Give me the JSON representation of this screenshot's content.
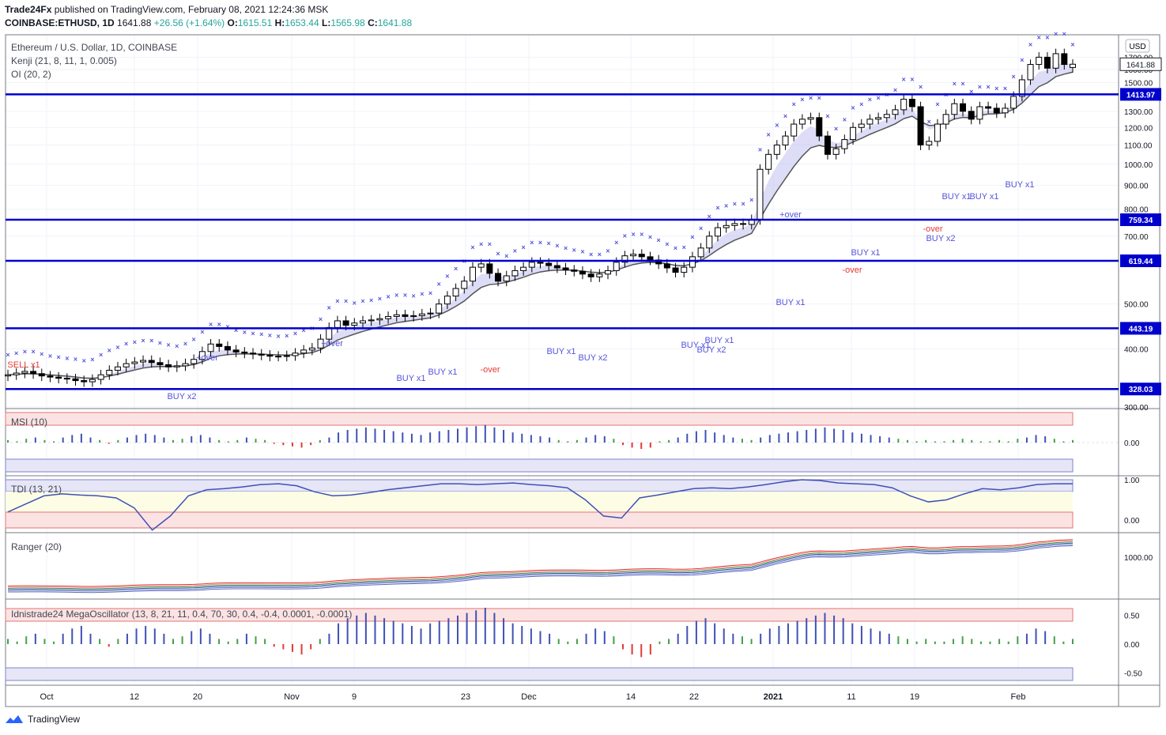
{
  "header": {
    "publisher": "Trade24Fx",
    "published_text": "published on TradingView.com, February 08, 2021 12:24:36 MSK",
    "symbol": "COINBASE:ETHUSD, 1D",
    "last": "1641.88",
    "change": "+26.56 (+1.64%)",
    "o_label": "O:",
    "o": "1615.51",
    "h_label": "H:",
    "h": "1653.44",
    "l_label": "L:",
    "l": "1565.98",
    "c_label": "C:",
    "c": "1641.88"
  },
  "legend": {
    "title": "Ethereum / U.S. Dollar, 1D, COINBASE",
    "kenji": "Kenji (21, 8, 11, 1, 0.005)",
    "oi": "OI (20, 2)"
  },
  "currency": "USD",
  "colors": {
    "line_blue": "#0000cc",
    "candle_up": "#ffffff",
    "candle_down": "#000000",
    "band": "#b3b3ee",
    "marker": "#5555dd"
  },
  "chart_data": [
    {
      "type": "candlestick",
      "title": "Ethereum / U.S. Dollar, 1D, COINBASE",
      "y_scale": "log",
      "ylim": [
        300,
        1900
      ],
      "y_ticks": [
        "1700.00",
        "1600.00",
        "1500.00",
        "1300.00",
        "1200.00",
        "1100.00",
        "1000.00",
        "900.00",
        "800.00",
        "700.00",
        "500.00",
        "400.00",
        "300.00"
      ],
      "y_tick_values": [
        1700,
        1600,
        1500,
        1300,
        1200,
        1100,
        1000,
        900,
        800,
        700,
        500,
        400,
        300
      ],
      "x_ticks": [
        "Oct",
        "12",
        "20",
        "Nov",
        "9",
        "23",
        "Dec",
        "14",
        "22",
        "2021",
        "11",
        "19",
        "Feb"
      ],
      "horizontal_levels": [
        {
          "label": "1413.97",
          "value": 1413.97
        },
        {
          "label": "759.34",
          "value": 759.34
        },
        {
          "label": "619.44",
          "value": 619.44
        },
        {
          "label": "443.19",
          "value": 443.19
        },
        {
          "label": "328.03",
          "value": 328.03
        }
      ],
      "price_label": "1641.88",
      "annotations": [
        "BUY x1",
        "BUY x2",
        "+over",
        "-over",
        "SELL x1"
      ],
      "close": [
        352,
        355,
        358,
        354,
        350,
        348,
        346,
        345,
        342,
        340,
        344,
        352,
        360,
        366,
        372,
        375,
        378,
        374,
        370,
        366,
        368,
        372,
        380,
        395,
        410,
        405,
        398,
        394,
        392,
        390,
        388,
        386,
        386,
        387,
        392,
        398,
        402,
        420,
        445,
        460,
        450,
        455,
        460,
        462,
        465,
        470,
        474,
        470,
        472,
        476,
        478,
        500,
        520,
        540,
        560,
        600,
        610,
        582,
        560,
        575,
        590,
        600,
        615,
        612,
        605,
        598,
        592,
        588,
        580,
        572,
        580,
        590,
        615,
        635,
        640,
        632,
        622,
        610,
        598,
        585,
        600,
        632,
        660,
        700,
        730,
        738,
        745,
        742,
        760,
        975,
        1050,
        1100,
        1150,
        1220,
        1250,
        1260,
        1150,
        1050,
        1080,
        1130,
        1200,
        1220,
        1250,
        1260,
        1280,
        1310,
        1380,
        1330,
        1100,
        1120,
        1220,
        1280,
        1350,
        1300,
        1250,
        1330,
        1320,
        1290,
        1320,
        1400,
        1520,
        1640,
        1700,
        1610,
        1730,
        1640,
        1641.88
      ],
      "open": [
        350,
        352,
        355,
        358,
        354,
        350,
        348,
        346,
        345,
        342,
        340,
        344,
        352,
        360,
        366,
        372,
        375,
        378,
        374,
        370,
        366,
        368,
        372,
        380,
        395,
        410,
        405,
        398,
        394,
        392,
        390,
        388,
        386,
        386,
        387,
        392,
        398,
        402,
        420,
        445,
        460,
        450,
        455,
        460,
        462,
        465,
        470,
        474,
        470,
        472,
        476,
        478,
        500,
        520,
        540,
        560,
        600,
        610,
        582,
        560,
        575,
        590,
        600,
        615,
        612,
        605,
        598,
        592,
        588,
        580,
        572,
        580,
        590,
        615,
        635,
        640,
        632,
        622,
        610,
        598,
        585,
        600,
        632,
        660,
        700,
        730,
        738,
        745,
        742,
        760,
        975,
        1050,
        1100,
        1150,
        1220,
        1250,
        1260,
        1150,
        1050,
        1080,
        1130,
        1200,
        1220,
        1250,
        1260,
        1280,
        1310,
        1380,
        1330,
        1100,
        1120,
        1220,
        1280,
        1350,
        1300,
        1250,
        1330,
        1320,
        1290,
        1320,
        1400,
        1520,
        1640,
        1700,
        1610,
        1730,
        1615.51
      ],
      "series": [
        {
          "name": "Kenji"
        },
        {
          "name": "OI"
        }
      ]
    },
    {
      "type": "bar",
      "title": "MSI (10)",
      "y_ticks": [
        "0.00"
      ],
      "y_tick_values": [
        0
      ],
      "values": [
        0.1,
        0.05,
        0.15,
        0.2,
        0.1,
        0.05,
        0.2,
        0.3,
        0.35,
        0.2,
        0.1,
        -0.05,
        0.1,
        0.2,
        0.3,
        0.35,
        0.3,
        0.2,
        0.1,
        0.15,
        0.25,
        0.3,
        0.2,
        0.1,
        0.05,
        0.1,
        0.2,
        0.15,
        0.1,
        -0.05,
        -0.1,
        -0.15,
        -0.2,
        -0.1,
        0.1,
        0.2,
        0.4,
        0.5,
        0.55,
        0.6,
        0.55,
        0.5,
        0.45,
        0.4,
        0.35,
        0.3,
        0.4,
        0.45,
        0.5,
        0.55,
        0.6,
        0.65,
        0.7,
        0.6,
        0.5,
        0.4,
        0.35,
        0.3,
        0.25,
        0.2,
        0.1,
        0.05,
        0.1,
        0.2,
        0.3,
        0.25,
        0.15,
        -0.1,
        -0.2,
        -0.25,
        -0.2,
        0.05,
        0.1,
        0.2,
        0.35,
        0.45,
        0.5,
        0.4,
        0.3,
        0.2,
        0.15,
        0.1,
        0.2,
        0.3,
        0.35,
        0.4,
        0.45,
        0.5,
        0.55,
        0.6,
        0.55,
        0.5,
        0.4,
        0.35,
        0.3,
        0.25,
        0.2,
        0.15,
        0.1,
        0.05,
        0.1,
        0.05,
        0.05,
        0.1,
        0.15,
        0.1,
        0.05,
        0.05,
        0.1,
        0.05,
        0.15,
        0.2,
        0.3,
        0.25,
        0.15,
        0.05,
        0.1
      ]
    },
    {
      "type": "line",
      "title": "TDI (13, 21)",
      "y_ticks": [
        "1.00",
        "0.00"
      ],
      "y_tick_values": [
        1,
        0
      ],
      "values": [
        0.2,
        0.4,
        0.6,
        0.65,
        0.62,
        0.6,
        0.55,
        0.3,
        -0.25,
        0.1,
        0.6,
        0.75,
        0.78,
        0.82,
        0.88,
        0.9,
        0.85,
        0.7,
        0.6,
        0.62,
        0.68,
        0.75,
        0.8,
        0.85,
        0.9,
        0.9,
        0.88,
        0.9,
        0.92,
        0.88,
        0.85,
        0.8,
        0.5,
        0.1,
        0.05,
        0.55,
        0.62,
        0.7,
        0.78,
        0.8,
        0.78,
        0.82,
        0.88,
        0.95,
        1.0,
        0.98,
        0.92,
        0.9,
        0.88,
        0.8,
        0.6,
        0.45,
        0.5,
        0.65,
        0.78,
        0.75,
        0.8,
        0.88,
        0.9,
        0.9
      ]
    },
    {
      "type": "line",
      "title": "Ranger (20)",
      "y_ticks": [
        "1000.00"
      ],
      "y_tick_values": [
        1000
      ]
    },
    {
      "type": "bar",
      "title": "Idnistrade24 MegaOscillator (13, 8, 21, 11, 0.4, 70, 30, 0.4, -0.4, 0.0001, -0.0001)",
      "y_ticks": [
        "0.50",
        "0.00",
        "-0.50"
      ],
      "y_tick_values": [
        0.5,
        0,
        -0.5
      ]
    }
  ],
  "footer": {
    "brand": "TradingView"
  }
}
